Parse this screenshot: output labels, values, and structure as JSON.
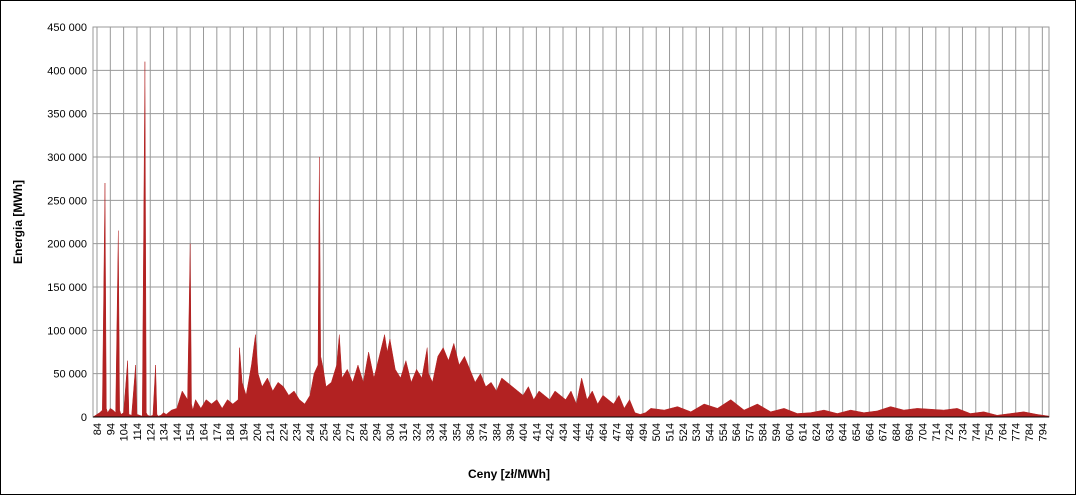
{
  "chart_data": {
    "type": "area",
    "x_label": "Ceny [zł/MWh]",
    "y_label": "Energia [MWh]",
    "color": "#b22222",
    "grid": true,
    "xlim": [
      81,
      799
    ],
    "ylim": [
      0,
      450000
    ],
    "yticks": [
      0,
      {
        "value": 50000,
        "label": "50 000"
      },
      {
        "value": 100000,
        "label": "100 000"
      },
      {
        "value": 150000,
        "label": "150 000"
      },
      {
        "value": 200000,
        "label": "200 000"
      },
      {
        "value": 250000,
        "label": "250 000"
      },
      {
        "value": 300000,
        "label": "300 000"
      },
      {
        "value": 350000,
        "label": "350 000"
      },
      {
        "value": 400000,
        "label": "400 000"
      },
      {
        "value": 450000,
        "label": "450 000"
      }
    ],
    "xticks": [
      84,
      94,
      104,
      114,
      124,
      134,
      144,
      154,
      164,
      174,
      184,
      194,
      204,
      214,
      224,
      234,
      244,
      254,
      264,
      274,
      284,
      294,
      304,
      314,
      324,
      334,
      344,
      354,
      364,
      374,
      384,
      394,
      404,
      414,
      424,
      434,
      444,
      454,
      464,
      474,
      484,
      494,
      504,
      514,
      524,
      534,
      544,
      554,
      564,
      574,
      584,
      594,
      604,
      614,
      624,
      634,
      644,
      654,
      664,
      674,
      684,
      694,
      704,
      714,
      724,
      734,
      744,
      754,
      764,
      774,
      784,
      794
    ],
    "x": [
      81,
      84,
      86,
      88,
      90,
      91,
      92,
      94,
      96,
      98,
      100,
      101,
      102,
      104,
      107,
      108,
      110,
      113,
      114,
      116,
      118,
      120,
      121,
      122,
      124,
      126,
      128,
      129,
      130,
      132,
      134,
      136,
      140,
      144,
      148,
      152,
      154,
      155,
      156,
      158,
      162,
      166,
      170,
      174,
      178,
      182,
      186,
      190,
      191,
      193,
      196,
      200,
      203,
      205,
      208,
      212,
      216,
      220,
      224,
      228,
      232,
      236,
      240,
      244,
      247,
      250,
      251,
      252,
      254,
      256,
      260,
      264,
      266,
      268,
      272,
      276,
      280,
      284,
      288,
      292,
      296,
      300,
      302,
      304,
      308,
      312,
      316,
      320,
      324,
      328,
      332,
      333,
      336,
      340,
      344,
      348,
      352,
      356,
      360,
      364,
      368,
      372,
      376,
      380,
      384,
      388,
      392,
      396,
      400,
      404,
      408,
      412,
      416,
      420,
      424,
      428,
      432,
      436,
      440,
      444,
      448,
      452,
      456,
      460,
      464,
      468,
      472,
      476,
      480,
      484,
      488,
      492,
      496,
      500,
      510,
      520,
      530,
      540,
      550,
      560,
      570,
      580,
      590,
      600,
      610,
      620,
      630,
      640,
      650,
      660,
      670,
      680,
      690,
      700,
      710,
      720,
      730,
      740,
      750,
      760,
      770,
      780,
      790,
      799
    ],
    "values": [
      0,
      3000,
      5000,
      8000,
      270000,
      10000,
      5000,
      10000,
      8000,
      5000,
      215000,
      8000,
      3000,
      5000,
      65000,
      3000,
      2000,
      60000,
      3000,
      2000,
      1000,
      410000,
      5000,
      2000,
      1000,
      2000,
      60000,
      3000,
      1000,
      2000,
      5000,
      3000,
      8000,
      10000,
      30000,
      20000,
      200000,
      15000,
      8000,
      20000,
      10000,
      20000,
      15000,
      20000,
      10000,
      20000,
      15000,
      20000,
      80000,
      40000,
      25000,
      60000,
      95000,
      50000,
      35000,
      45000,
      30000,
      40000,
      35000,
      25000,
      30000,
      20000,
      15000,
      25000,
      50000,
      60000,
      300000,
      70000,
      55000,
      35000,
      40000,
      60000,
      95000,
      45000,
      55000,
      40000,
      60000,
      40000,
      75000,
      45000,
      70000,
      95000,
      75000,
      90000,
      55000,
      45000,
      65000,
      40000,
      55000,
      45000,
      80000,
      50000,
      40000,
      70000,
      80000,
      65000,
      85000,
      60000,
      70000,
      55000,
      40000,
      50000,
      35000,
      40000,
      30000,
      45000,
      40000,
      35000,
      30000,
      25000,
      35000,
      20000,
      30000,
      25000,
      20000,
      30000,
      25000,
      20000,
      30000,
      15000,
      45000,
      20000,
      30000,
      15000,
      25000,
      20000,
      15000,
      25000,
      10000,
      20000,
      5000,
      3000,
      5000,
      10000,
      8000,
      12000,
      6000,
      15000,
      10000,
      20000,
      8000,
      15000,
      6000,
      10000,
      4000,
      5000,
      8000,
      4000,
      8000,
      5000,
      7000,
      12000,
      8000,
      10000,
      9000,
      8000,
      10000,
      4000,
      6000,
      2000,
      4000,
      6000,
      3000,
      1000
    ]
  }
}
